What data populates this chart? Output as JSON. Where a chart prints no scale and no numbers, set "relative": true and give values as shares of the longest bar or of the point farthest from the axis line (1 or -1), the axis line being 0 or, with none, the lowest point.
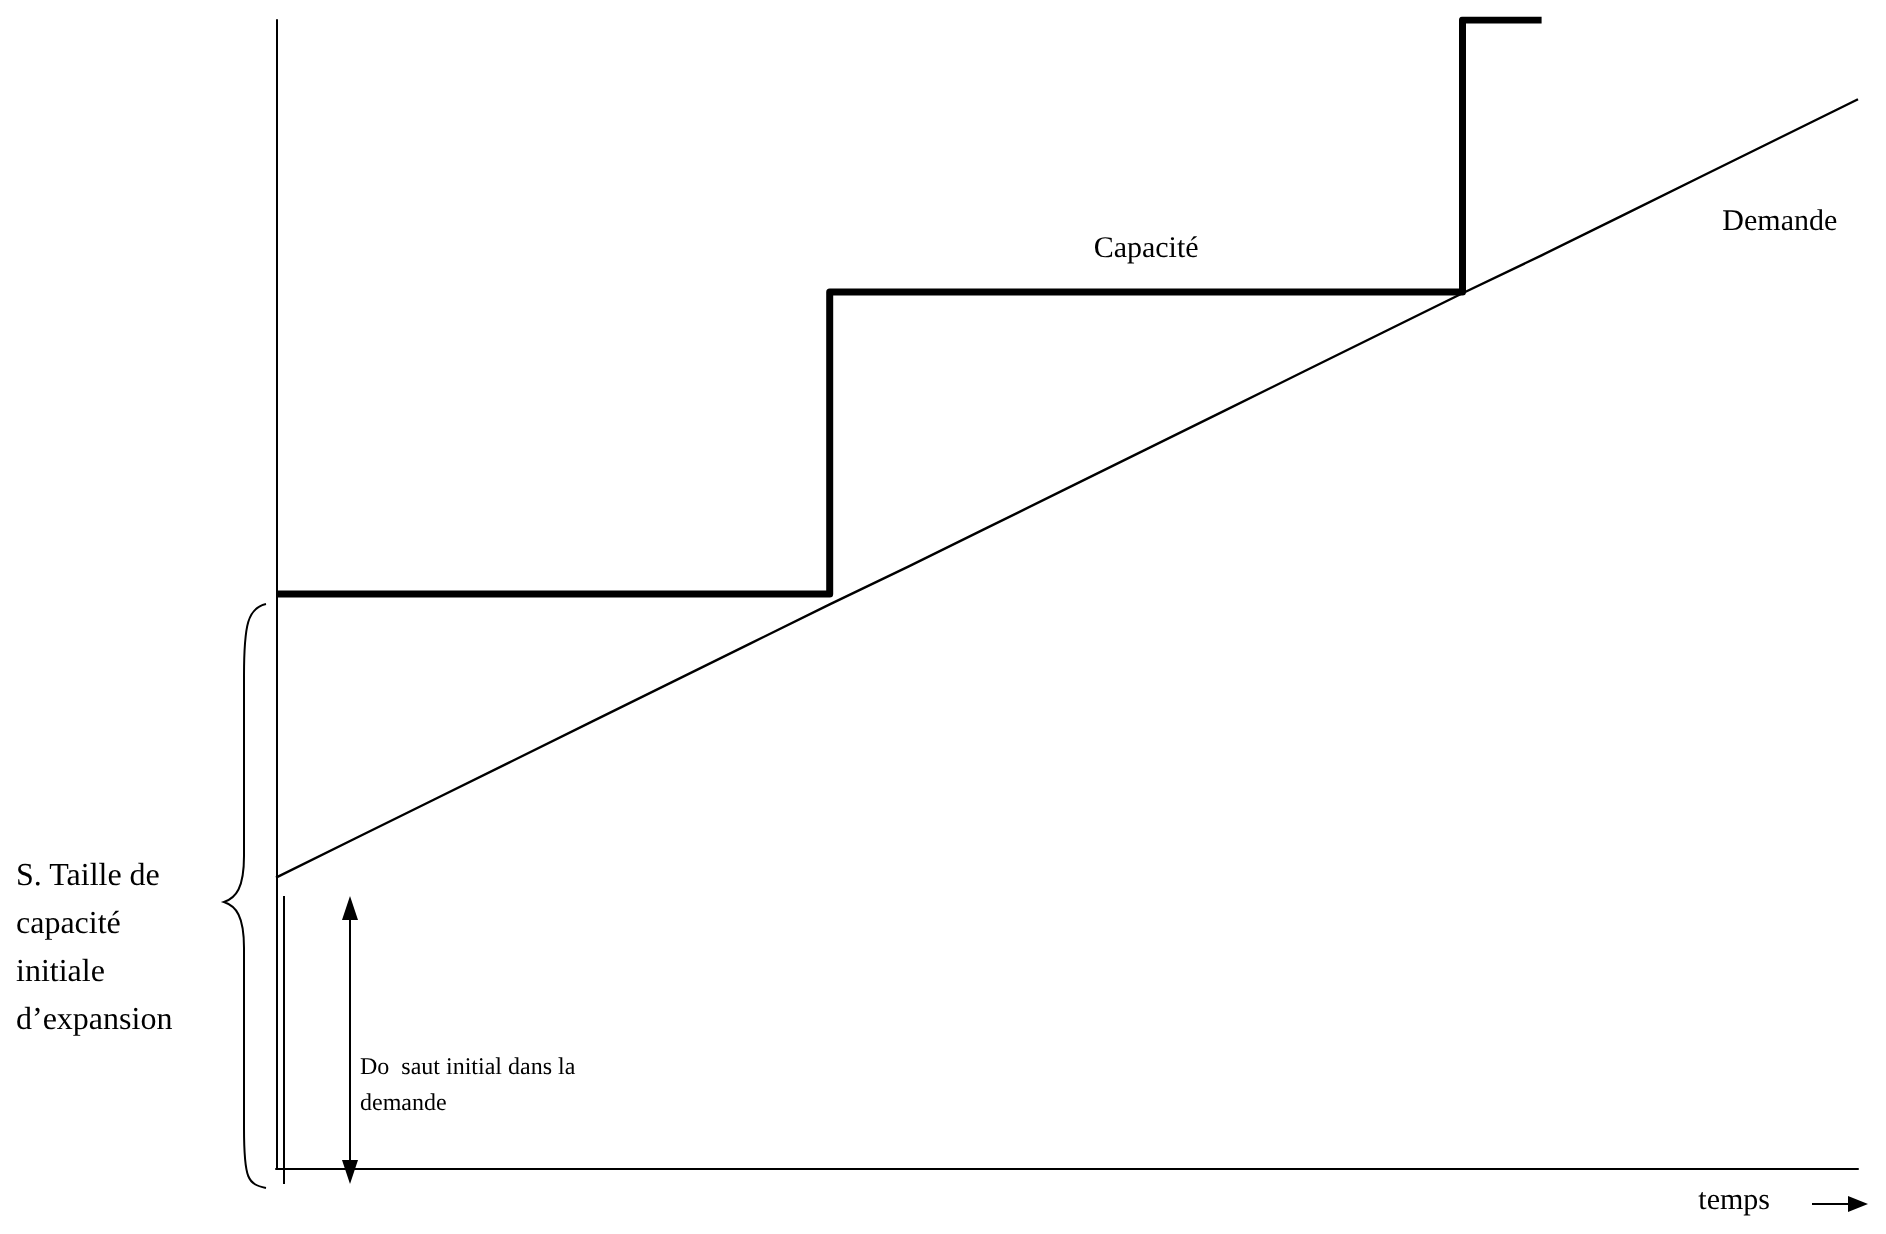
{
  "chart_data": {
    "type": "line",
    "relative": true,
    "xlabel": "temps",
    "ylabel": "S. Taille de capacité initiale d’expansion",
    "annotations": [
      "Do  saut initial dans la demande"
    ],
    "categories": [
      null,
      null,
      null,
      null,
      null,
      null,
      null,
      null,
      null,
      null,
      null,
      null,
      null,
      null,
      null,
      null,
      null,
      null,
      null,
      null,
      null
    ],
    "grid": false,
    "legend": false,
    "marker": "none",
    "series": [
      {
        "name": "Capacité",
        "type": "step",
        "color": "#000000",
        "values": [
          0.5,
          0.5,
          0.5,
          0.5,
          0.5,
          0.5,
          0.5,
          0.5,
          0.763,
          0.763,
          0.763,
          0.763,
          0.763,
          0.763,
          0.763,
          0.763,
          1,
          null,
          null,
          null,
          null
        ]
      },
      {
        "name": "Demande",
        "color": "#000000",
        "values": [
          0.253,
          0.287,
          0.321,
          0.355,
          0.389,
          0.423,
          0.457,
          0.491,
          0.524,
          0.558,
          0.592,
          0.626,
          0.66,
          0.694,
          0.728,
          0.762,
          0.795,
          0.829,
          0.863,
          0.897,
          0.931
        ]
      }
    ]
  }
}
